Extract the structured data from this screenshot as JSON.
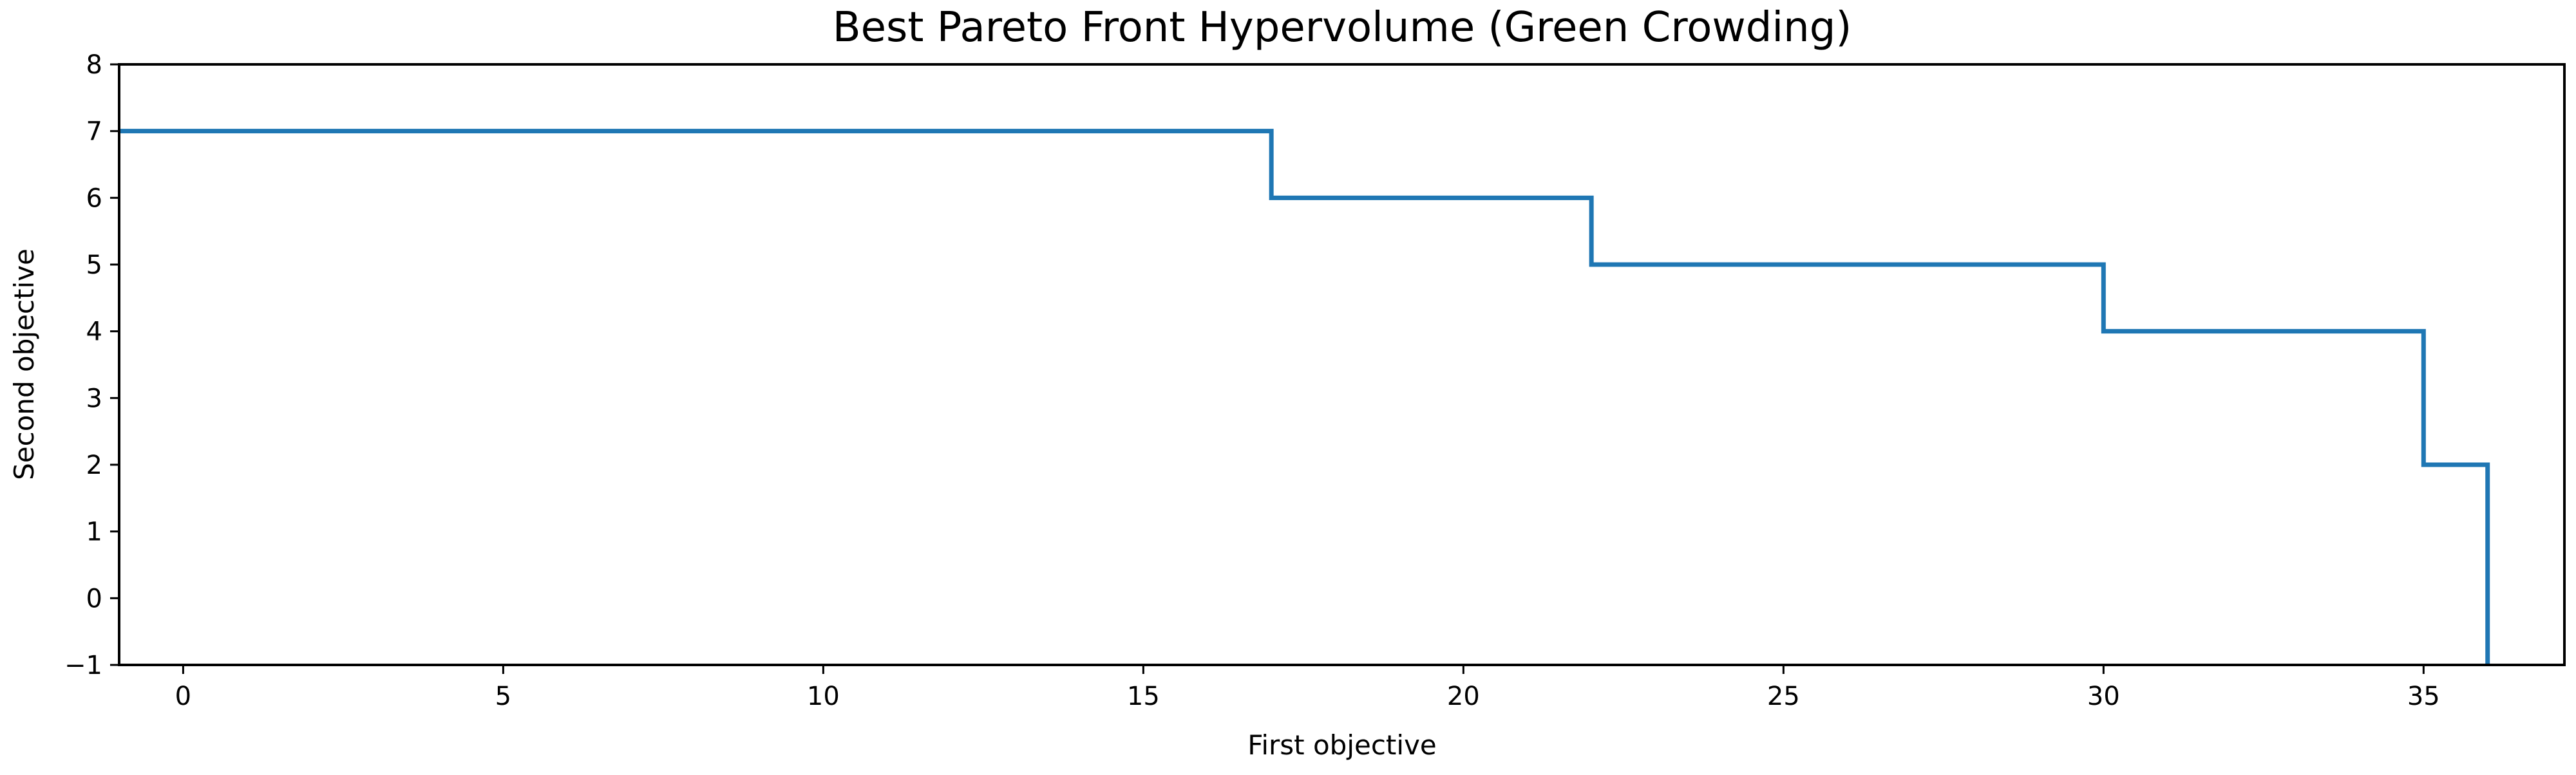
{
  "chart_data": {
    "type": "line",
    "step": "post",
    "title": "Best Pareto Front Hypervolume (Green Crowding)",
    "xlabel": "First objective",
    "ylabel": "Second objective",
    "xlim": [
      -1,
      37.2
    ],
    "ylim": [
      -1,
      8
    ],
    "xticks": [
      0,
      5,
      10,
      15,
      20,
      25,
      30,
      35
    ],
    "yticks": [
      -1,
      0,
      1,
      2,
      3,
      4,
      5,
      6,
      7,
      8
    ],
    "ytick_labels": [
      "−1",
      "0",
      "1",
      "2",
      "3",
      "4",
      "5",
      "6",
      "7",
      "8"
    ],
    "grid": false,
    "series": [
      {
        "color": "#1f77b4",
        "x": [
          -1,
          17,
          22,
          30,
          35,
          36,
          36
        ],
        "y": [
          7,
          6,
          5,
          4,
          2,
          -1,
          -1
        ]
      }
    ]
  }
}
